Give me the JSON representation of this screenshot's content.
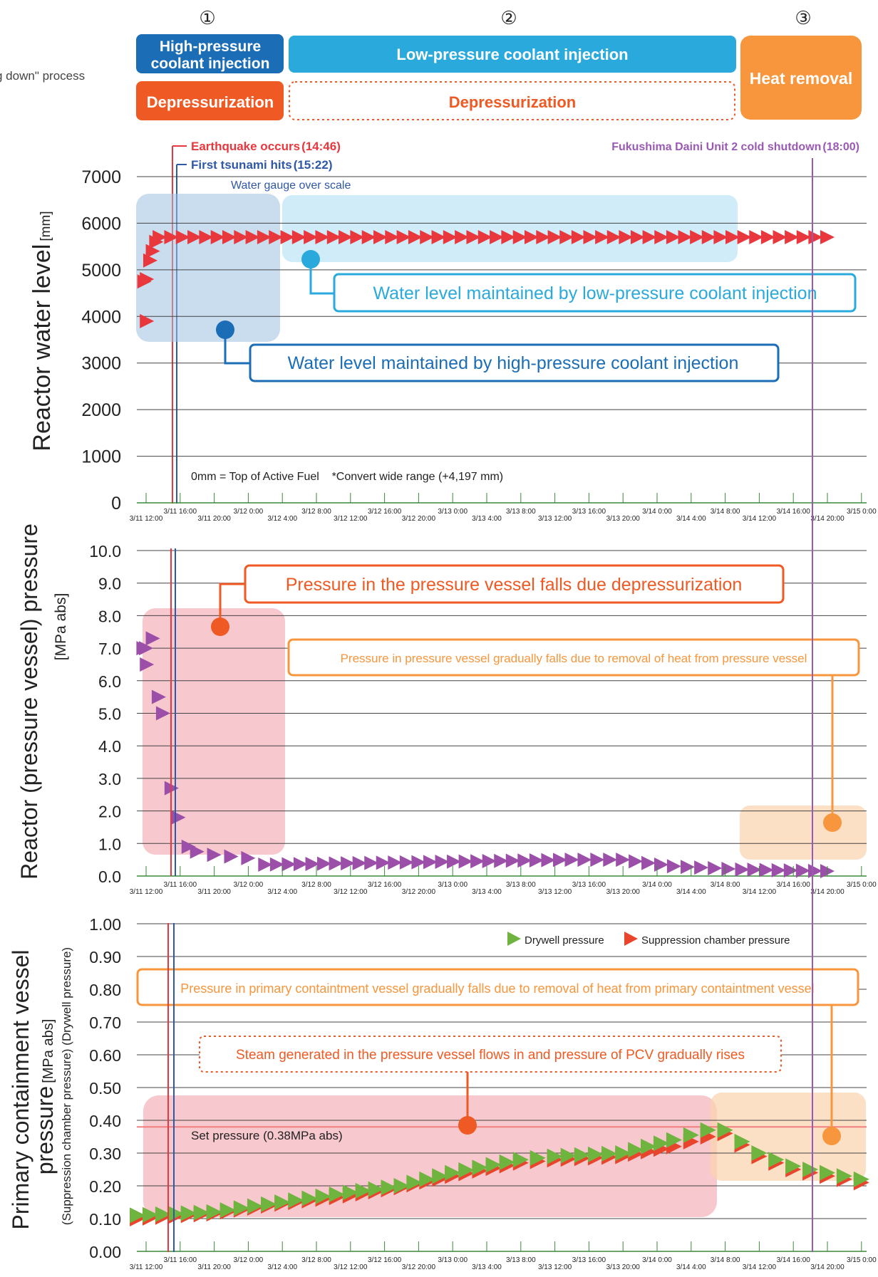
{
  "header": {
    "left_caption": "g down\" process",
    "phases": [
      {
        "num": "①",
        "injection": "High-pressure coolant injection",
        "injection_lines": [
          "High-pressure",
          "coolant injection"
        ],
        "depress": "Depressurization"
      },
      {
        "num": "②",
        "injection": "Low-pressure coolant injection",
        "depress": "Depressurization"
      },
      {
        "num": "③",
        "label": "Heat removal"
      }
    ]
  },
  "events": {
    "earthquake": {
      "label": "Earthquake occurs",
      "time": "(14:46)",
      "color": "#e8383d"
    },
    "tsunami": {
      "label": "First tsunami hits",
      "time": "(15:22)",
      "color": "#2f58a8"
    },
    "shutdown": {
      "label": "Fukushima Daini Unit 2 cold shutdown",
      "time": "(18:00)",
      "color": "#9b59b6"
    }
  },
  "time_axis": {
    "upper": [
      "3/11 16:00",
      "3/12 0:00",
      "3/12 8:00",
      "3/12 16:00",
      "3/13 0:00",
      "3/13 8:00",
      "3/13 16:00",
      "3/14 0:00",
      "3/14 8:00",
      "3/14 16:00",
      "3/15 0:00"
    ],
    "lower": [
      "3/11 12:00",
      "3/11 20:00",
      "3/12 4:00",
      "3/12 12:00",
      "3/12 20:00",
      "3/13 4:00",
      "3/13 12:00",
      "3/13 20:00",
      "3/14 4:00",
      "3/14 12:00",
      "3/14 20:00"
    ]
  },
  "colors": {
    "earthquake_line": "#e8383d",
    "tsunami_line": "#2f58a8",
    "shutdown_line": "#9b59b6",
    "water_marker": "#e8383d",
    "reactor_marker": "#9b4fa8",
    "drywell_marker": "#6fb43f",
    "suppression_marker": "#e8452c",
    "hp_blue": "#1b6db5",
    "lp_blue": "#2aa9dd",
    "depress_orange": "#ef5a24",
    "heat_orange": "#f7963d"
  },
  "chart_data": [
    {
      "type": "scatter",
      "ylabel": "Reactor water level",
      "ylabel_unit": "[mm]",
      "ylim": [
        0,
        7000
      ],
      "yticks": [
        "0",
        "1000",
        "2000",
        "3000",
        "4000",
        "5000",
        "6000",
        "7000"
      ],
      "annotations": {
        "gauge_over": "Water gauge over scale",
        "hp_note": "Water level maintained by high-pressure coolant injection",
        "lp_note": "Water level maintained by low-pressure coolant injection",
        "footnote": "0mm = Top of Active Fuel    *Convert wide range (+4,197 mm)"
      },
      "series": [
        {
          "values": [
            [
              0.1,
              3900
            ],
            [
              -0.2,
              4750
            ],
            [
              0.1,
              4800
            ],
            [
              0.5,
              5200
            ],
            [
              0.8,
              5400
            ],
            [
              1.2,
              5600
            ],
            [
              1.6,
              5700
            ],
            [
              48,
              5700
            ],
            [
              80,
              5700
            ]
          ]
        }
      ]
    },
    {
      "type": "scatter",
      "ylabel": "Reactor (pressure vessel) pressure",
      "ylabel_unit": "[MPa abs]",
      "ylim": [
        0,
        10
      ],
      "yticks": [
        "0.0",
        "1.0",
        "2.0",
        "3.0",
        "4.0",
        "5.0",
        "6.0",
        "7.0",
        "8.0",
        "9.0",
        "10.0"
      ],
      "annotations": {
        "depress_note": "Pressure in the pressure vessel falls due depressurization",
        "heat_note": "Pressure in pressure vessel gradually falls due to removal of heat from pressure vessel"
      },
      "series": [
        {
          "values": [
            [
              -0.3,
              7.0
            ],
            [
              0.0,
              7.0
            ],
            [
              0.8,
              7.3
            ],
            [
              0.1,
              6.5
            ],
            [
              1.5,
              5.5
            ],
            [
              2.0,
              5.0
            ],
            [
              3.0,
              2.7
            ],
            [
              3.8,
              1.8
            ],
            [
              5.0,
              0.9
            ],
            [
              6.0,
              0.75
            ],
            [
              8.0,
              0.65
            ],
            [
              12.0,
              0.55
            ],
            [
              14.0,
              0.35
            ],
            [
              50.0,
              0.5
            ],
            [
              56.0,
              0.5
            ],
            [
              62.0,
              0.3
            ],
            [
              70.0,
              0.2
            ],
            [
              80.0,
              0.15
            ]
          ]
        }
      ]
    },
    {
      "type": "line",
      "ylabel": "Primary containment vessel pressure",
      "ylabel_unit": "[MPa abs]",
      "ylabel_sub": "(Suppression chamber pressure) (Drywell pressure)",
      "ylim": [
        0,
        1.0
      ],
      "yticks": [
        "0.00",
        "0.10",
        "0.20",
        "0.30",
        "0.40",
        "0.50",
        "0.60",
        "0.70",
        "0.80",
        "0.90",
        "1.00"
      ],
      "legend": [
        "Drywell pressure",
        "Suppression chamber pressure"
      ],
      "set_pressure": 0.38,
      "set_pressure_label": "Set pressure (0.38MPa abs)",
      "annotations": {
        "heat_note": "Pressure in primary containtment vessel gradually falls due to removal of heat from primary containtment vessel",
        "steam_note": "Steam generated in the pressure vessel flows in and pressure of PCV gradually rises"
      },
      "series": [
        {
          "name": "Drywell pressure",
          "values": [
            [
              -1,
              0.11
            ],
            [
              8,
              0.12
            ],
            [
              16,
              0.15
            ],
            [
              24,
              0.18
            ],
            [
              30,
              0.2
            ],
            [
              36,
              0.24
            ],
            [
              44,
              0.28
            ],
            [
              48,
              0.29
            ],
            [
              56,
              0.3
            ],
            [
              62,
              0.34
            ],
            [
              66,
              0.37
            ],
            [
              68,
              0.37
            ],
            [
              72,
              0.3
            ],
            [
              76,
              0.26
            ],
            [
              80,
              0.24
            ],
            [
              84,
              0.22
            ]
          ]
        },
        {
          "name": "Suppression chamber pressure",
          "values": [
            [
              -1,
              0.1
            ],
            [
              8,
              0.115
            ],
            [
              16,
              0.145
            ],
            [
              24,
              0.17
            ],
            [
              30,
              0.195
            ],
            [
              36,
              0.23
            ],
            [
              44,
              0.27
            ],
            [
              48,
              0.28
            ],
            [
              56,
              0.29
            ],
            [
              62,
              0.32
            ],
            [
              66,
              0.35
            ],
            [
              68,
              0.36
            ],
            [
              72,
              0.29
            ],
            [
              76,
              0.25
            ],
            [
              80,
              0.23
            ],
            [
              84,
              0.21
            ]
          ]
        }
      ]
    }
  ]
}
